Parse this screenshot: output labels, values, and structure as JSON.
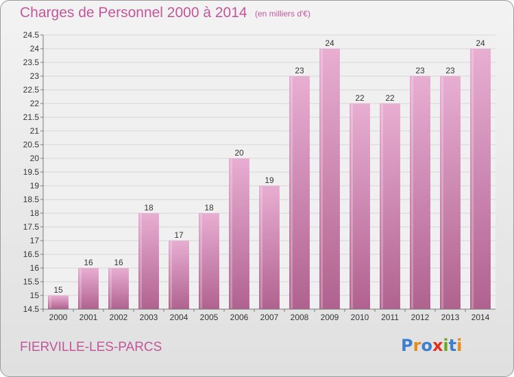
{
  "header": {
    "title": "Charges de Personnel 2000 à 2014",
    "unit": "(en milliers d'€)"
  },
  "footer": {
    "town": "FIERVILLE-LES-PARCS",
    "logo_text": "Proxiti",
    "logo_colors": [
      "#3a7fd0",
      "#e88a1a",
      "#3a7fd0",
      "#e0301e",
      "#6aa823",
      "#3a7fd0",
      "#e88a1a"
    ]
  },
  "colors": {
    "bar_light": "#e8aed2",
    "bar_dark": "#b0628f",
    "title": "#c2569a"
  },
  "chart_data": {
    "type": "bar",
    "title": "Charges de Personnel 2000 à 2014",
    "categories": [
      "2000",
      "2001",
      "2002",
      "2003",
      "2004",
      "2005",
      "2006",
      "2007",
      "2008",
      "2009",
      "2010",
      "2011",
      "2012",
      "2013",
      "2014"
    ],
    "values": [
      15,
      16,
      16,
      18,
      17,
      18,
      20,
      19,
      23,
      24,
      22,
      22,
      23,
      23,
      24
    ],
    "ylim": [
      14.5,
      24.5
    ],
    "yticks": [
      "14.5",
      "15",
      "15.5",
      "16",
      "16.5",
      "17",
      "17.5",
      "18",
      "18.5",
      "19",
      "19.5",
      "20",
      "20.5",
      "21",
      "21.5",
      "22",
      "22.5",
      "23",
      "23.5",
      "24",
      "24.5"
    ],
    "grid": true,
    "legend": "none"
  }
}
